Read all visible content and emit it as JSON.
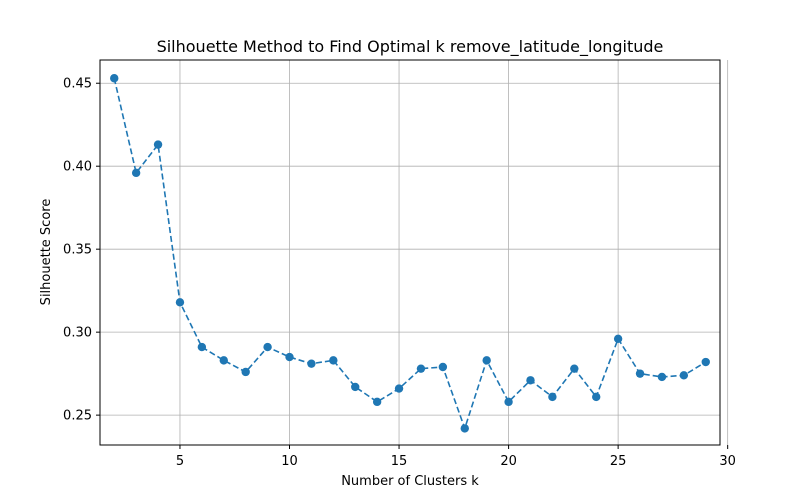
{
  "chart_data": {
    "type": "line",
    "title": "Silhouette Method to Find Optimal k remove_latitude_longitude",
    "xlabel": "Number of Clusters k",
    "ylabel": "Silhouette Score",
    "xlim": [
      1.35,
      29.65
    ],
    "ylim": [
      0.232,
      0.464
    ],
    "x_ticks": [
      5,
      10,
      15,
      20,
      25,
      30
    ],
    "y_ticks": [
      0.25,
      0.3,
      0.35,
      0.4,
      0.45
    ],
    "x_tick_labels": [
      "5",
      "10",
      "15",
      "20",
      "25",
      "30"
    ],
    "y_tick_labels": [
      "0.25",
      "0.30",
      "0.35",
      "0.40",
      "0.45"
    ],
    "grid": true,
    "series": [
      {
        "color": "#1f77b4",
        "line_style": "dashed",
        "marker": "circle",
        "x": [
          2,
          3,
          4,
          5,
          6,
          7,
          8,
          9,
          10,
          11,
          12,
          13,
          14,
          15,
          16,
          17,
          18,
          19,
          20,
          21,
          22,
          23,
          24,
          25,
          26,
          27,
          28,
          29
        ],
        "y": [
          0.453,
          0.396,
          0.413,
          0.318,
          0.291,
          0.283,
          0.276,
          0.291,
          0.285,
          0.281,
          0.283,
          0.267,
          0.258,
          0.266,
          0.278,
          0.279,
          0.242,
          0.283,
          0.258,
          0.271,
          0.261,
          0.278,
          0.261,
          0.296,
          0.275,
          0.273,
          0.274,
          0.282
        ]
      }
    ]
  }
}
